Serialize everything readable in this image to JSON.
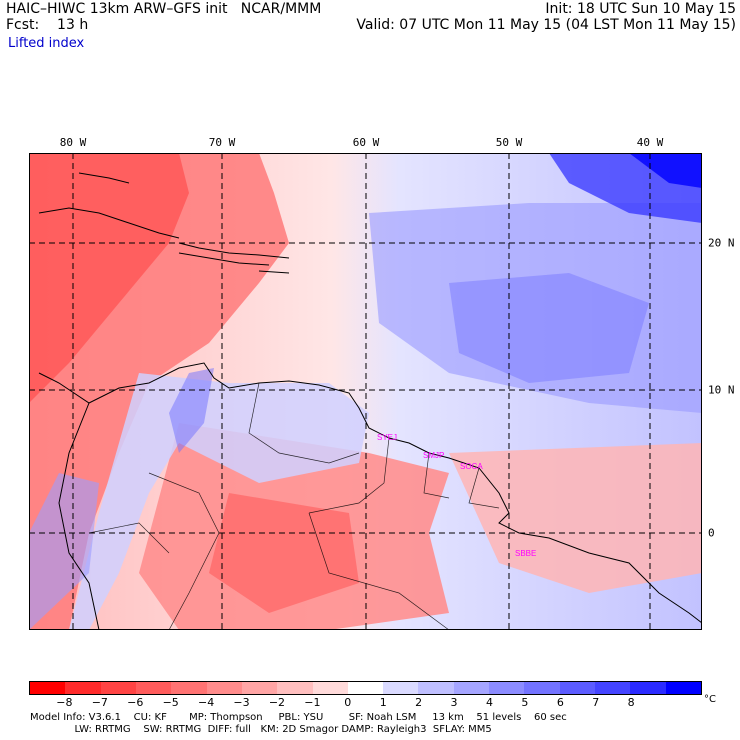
{
  "header": {
    "title": "HAIC–HIWC 13km ARW–GFS init   NCAR/MMM",
    "init": "Init: 18 UTC Sun 10 May 15",
    "forecast": "Fcst:    13 h",
    "valid": "Valid: 07 UTC Mon 11 May 15 (04 LST Mon 11 May 15)",
    "field": "Lifted index"
  },
  "map": {
    "lon_labels": [
      "80 W",
      "70 W",
      "60 W",
      "50 W",
      "40 W"
    ],
    "lat_labels": [
      "20 N",
      "10 N",
      "0"
    ],
    "stations": [
      "SYEJ",
      "SMJP",
      "SOCA",
      "SBBE"
    ],
    "station_color": "#ff00ff",
    "grid_color": "#000000"
  },
  "colorbar": {
    "unit": "°C",
    "ticks": [
      "−8",
      "−7",
      "−6",
      "−5",
      "−4",
      "−3",
      "−2",
      "−1",
      "0",
      "1",
      "2",
      "3",
      "4",
      "5",
      "6",
      "7",
      "8"
    ],
    "colors": [
      "#ff0000",
      "#ff2b2b",
      "#ff4444",
      "#ff5c5c",
      "#ff7373",
      "#ff8c8c",
      "#ffa5a5",
      "#ffbfbf",
      "#ffdada",
      "#ffffff",
      "#dadaff",
      "#bfbfff",
      "#a5a5ff",
      "#8c8cff",
      "#7373ff",
      "#5c5cff",
      "#4444ff",
      "#2b2bff",
      "#0000ff"
    ]
  },
  "footer": {
    "line1": "Model Info: V3.6.1    CU: KF       MP: Thompson     PBL: YSU        SF: Noah LSM     13 km    51 levels    60 sec",
    "line2": "              LW: RRTMG    SW: RRTMG  DIFF: full   KM: 2D Smagor DAMP: Rayleigh3  SFLAY: MM5"
  }
}
